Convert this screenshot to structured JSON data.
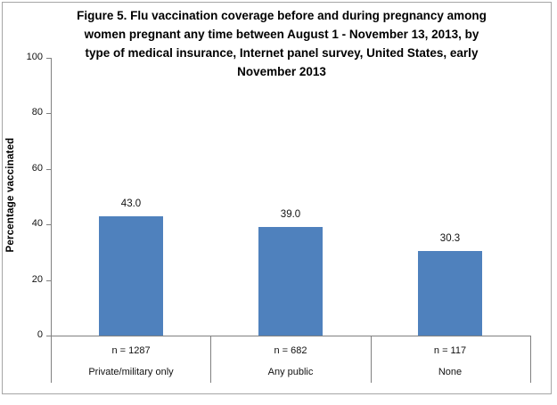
{
  "chart_data": {
    "type": "bar",
    "title": "Figure 5. Flu vaccination coverage before and during pregnancy among women pregnant any time between August 1 - November 13, 2013, by type of medical insurance, Internet panel survey, United States, early November 2013",
    "title_lines": [
      "Figure 5. Flu vaccination coverage before and during pregnancy  among",
      "women pregnant any time between August 1 - November 13, 2013, by",
      "type of medical insurance, Internet panel survey, United States, early",
      "November 2013"
    ],
    "ylabel": "Percentage vaccinated",
    "xlabel": "",
    "ylim": [
      0,
      100
    ],
    "yticks": [
      0,
      20,
      40,
      60,
      80,
      100
    ],
    "grid": false,
    "legend": false,
    "bar_color": "#4F81BD",
    "axis_color": "#808080",
    "categories": [
      "Private/military only",
      "Any public",
      "None"
    ],
    "sample_sizes": [
      "n = 1287",
      "n = 682",
      "n = 117"
    ],
    "values": [
      43.0,
      39.0,
      30.3
    ],
    "value_labels": [
      "43.0",
      "39.0",
      "30.3"
    ]
  }
}
